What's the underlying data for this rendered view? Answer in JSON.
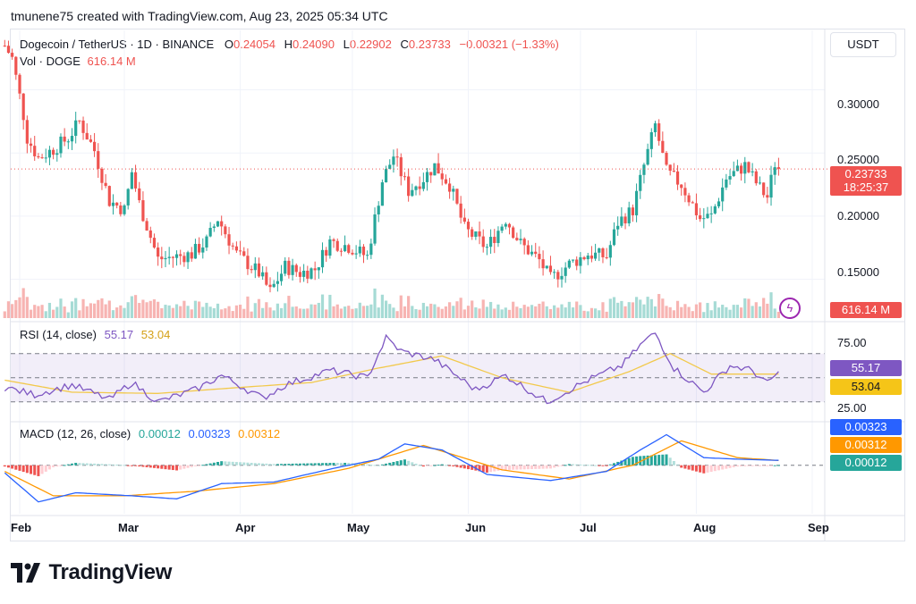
{
  "attribution": "tmunene75 created with TradingView.com, Aug 23, 2025 05:34 UTC",
  "colors": {
    "up": "#26a69a",
    "down": "#ef5350",
    "rsi": "#7e57c2",
    "rsi_ma": "#f2c94c",
    "macd": "#2962ff",
    "signal": "#ff9800",
    "accent": "#131722"
  },
  "header": {
    "symbol": "Dogecoin / TetherUS · 1D · BINANCE",
    "o_label": "O",
    "o": "0.24054",
    "h_label": "H",
    "h": "0.24090",
    "l_label": "L",
    "l": "0.22902",
    "c_label": "C",
    "c": "0.23733",
    "change": "−0.00321 (−1.33%)",
    "vol_label": "Vol · DOGE",
    "vol": "616.14 M"
  },
  "currency": "USDT",
  "price_tag": {
    "price": "0.23733",
    "countdown": "18:25:37"
  },
  "volume_tag": "616.14 M",
  "rsi_legend": {
    "title": "RSI (14, close)",
    "value": "55.17",
    "ma": "53.04"
  },
  "macd_legend": {
    "title": "MACD (12, 26, close)",
    "hist": "0.00012",
    "macd": "0.00323",
    "signal": "0.00312"
  },
  "rsi_tags": {
    "value": "55.17",
    "ma": "53.04"
  },
  "macd_tags": {
    "macd": "0.00323",
    "signal": "0.00312",
    "hist": "0.00012"
  },
  "logo_text": "TradingView",
  "chart_data": [
    {
      "type": "candlestick",
      "title": "Dogecoin / TetherUS · 1D · BINANCE",
      "ylabel": "USDT",
      "ylim": [
        0.12,
        0.34
      ],
      "y_ticks": [
        "0.30000",
        "0.25000",
        "0.20000",
        "0.15000"
      ],
      "x_ticks": [
        "Feb",
        "Mar",
        "Apr",
        "May",
        "Jun",
        "Jul",
        "Aug",
        "Sep"
      ],
      "last_price_line": 0.23733,
      "close_path": [
        {
          "date": "2025-01-28",
          "close": 0.335
        },
        {
          "date": "2025-01-30",
          "close": 0.325
        },
        {
          "date": "2025-02-02",
          "close": 0.28
        },
        {
          "date": "2025-02-03",
          "close": 0.262
        },
        {
          "date": "2025-02-06",
          "close": 0.246
        },
        {
          "date": "2025-02-10",
          "close": 0.253
        },
        {
          "date": "2025-02-14",
          "close": 0.262
        },
        {
          "date": "2025-02-17",
          "close": 0.275
        },
        {
          "date": "2025-02-21",
          "close": 0.252
        },
        {
          "date": "2025-02-25",
          "close": 0.212
        },
        {
          "date": "2025-03-01",
          "close": 0.205
        },
        {
          "date": "2025-03-03",
          "close": 0.235
        },
        {
          "date": "2025-03-05",
          "close": 0.21
        },
        {
          "date": "2025-03-10",
          "close": 0.166
        },
        {
          "date": "2025-03-15",
          "close": 0.168
        },
        {
          "date": "2025-03-19",
          "close": 0.17
        },
        {
          "date": "2025-03-23",
          "close": 0.18
        },
        {
          "date": "2025-03-26",
          "close": 0.198
        },
        {
          "date": "2025-03-31",
          "close": 0.17
        },
        {
          "date": "2025-04-06",
          "close": 0.155
        },
        {
          "date": "2025-04-09",
          "close": 0.14
        },
        {
          "date": "2025-04-13",
          "close": 0.16
        },
        {
          "date": "2025-04-17",
          "close": 0.155
        },
        {
          "date": "2025-04-21",
          "close": 0.158
        },
        {
          "date": "2025-04-25",
          "close": 0.18
        },
        {
          "date": "2025-04-30",
          "close": 0.176
        },
        {
          "date": "2025-05-05",
          "close": 0.168
        },
        {
          "date": "2025-05-09",
          "close": 0.228
        },
        {
          "date": "2025-05-12",
          "close": 0.248
        },
        {
          "date": "2025-05-16",
          "close": 0.22
        },
        {
          "date": "2025-05-20",
          "close": 0.23
        },
        {
          "date": "2025-05-23",
          "close": 0.24
        },
        {
          "date": "2025-05-27",
          "close": 0.225
        },
        {
          "date": "2025-05-31",
          "close": 0.19
        },
        {
          "date": "2025-06-06",
          "close": 0.175
        },
        {
          "date": "2025-06-11",
          "close": 0.198
        },
        {
          "date": "2025-06-15",
          "close": 0.178
        },
        {
          "date": "2025-06-20",
          "close": 0.165
        },
        {
          "date": "2025-06-23",
          "close": 0.15
        },
        {
          "date": "2025-06-28",
          "close": 0.162
        },
        {
          "date": "2025-07-03",
          "close": 0.17
        },
        {
          "date": "2025-07-08",
          "close": 0.168
        },
        {
          "date": "2025-07-11",
          "close": 0.195
        },
        {
          "date": "2025-07-15",
          "close": 0.205
        },
        {
          "date": "2025-07-18",
          "close": 0.24
        },
        {
          "date": "2025-07-21",
          "close": 0.272
        },
        {
          "date": "2025-07-24",
          "close": 0.235
        },
        {
          "date": "2025-07-28",
          "close": 0.225
        },
        {
          "date": "2025-08-02",
          "close": 0.198
        },
        {
          "date": "2025-08-05",
          "close": 0.2
        },
        {
          "date": "2025-08-09",
          "close": 0.23
        },
        {
          "date": "2025-08-14",
          "close": 0.24
        },
        {
          "date": "2025-08-18",
          "close": 0.222
        },
        {
          "date": "2025-08-20",
          "close": 0.215
        },
        {
          "date": "2025-08-22",
          "close": 0.242
        },
        {
          "date": "2025-08-23",
          "close": 0.23733
        }
      ]
    },
    {
      "type": "line",
      "title": "RSI (14, close)",
      "ylim": [
        18,
        92
      ],
      "y_ticks": [
        "75.00",
        "25.00"
      ],
      "bands": [
        70,
        50,
        30
      ],
      "rsi": [
        {
          "date": "2025-01-28",
          "value": 42
        },
        {
          "date": "2025-02-05",
          "value": 36
        },
        {
          "date": "2025-02-15",
          "value": 44
        },
        {
          "date": "2025-02-25",
          "value": 32
        },
        {
          "date": "2025-03-03",
          "value": 46
        },
        {
          "date": "2025-03-10",
          "value": 30
        },
        {
          "date": "2025-03-20",
          "value": 40
        },
        {
          "date": "2025-03-27",
          "value": 52
        },
        {
          "date": "2025-04-07",
          "value": 33
        },
        {
          "date": "2025-04-13",
          "value": 44
        },
        {
          "date": "2025-04-25",
          "value": 56
        },
        {
          "date": "2025-05-05",
          "value": 50
        },
        {
          "date": "2025-05-10",
          "value": 83
        },
        {
          "date": "2025-05-14",
          "value": 72
        },
        {
          "date": "2025-05-23",
          "value": 65
        },
        {
          "date": "2025-06-03",
          "value": 40
        },
        {
          "date": "2025-06-11",
          "value": 52
        },
        {
          "date": "2025-06-22",
          "value": 30
        },
        {
          "date": "2025-07-03",
          "value": 48
        },
        {
          "date": "2025-07-12",
          "value": 60
        },
        {
          "date": "2025-07-18",
          "value": 80
        },
        {
          "date": "2025-07-21",
          "value": 87
        },
        {
          "date": "2025-07-26",
          "value": 58
        },
        {
          "date": "2025-08-03",
          "value": 38
        },
        {
          "date": "2025-08-10",
          "value": 60
        },
        {
          "date": "2025-08-16",
          "value": 56
        },
        {
          "date": "2025-08-20",
          "value": 45
        },
        {
          "date": "2025-08-23",
          "value": 55.17
        }
      ],
      "rsi_ma": [
        {
          "date": "2025-01-28",
          "value": 48
        },
        {
          "date": "2025-02-15",
          "value": 38
        },
        {
          "date": "2025-03-10",
          "value": 37
        },
        {
          "date": "2025-04-01",
          "value": 42
        },
        {
          "date": "2025-04-20",
          "value": 46
        },
        {
          "date": "2025-05-08",
          "value": 58
        },
        {
          "date": "2025-05-25",
          "value": 68
        },
        {
          "date": "2025-06-10",
          "value": 50
        },
        {
          "date": "2025-06-28",
          "value": 38
        },
        {
          "date": "2025-07-14",
          "value": 55
        },
        {
          "date": "2025-07-25",
          "value": 70
        },
        {
          "date": "2025-08-05",
          "value": 53
        },
        {
          "date": "2025-08-23",
          "value": 53.04
        }
      ]
    },
    {
      "type": "line",
      "title": "MACD (12, 26, close)",
      "ylim": [
        -0.03,
        0.025
      ],
      "macd": [
        {
          "date": "2025-01-28",
          "value": -0.005
        },
        {
          "date": "2025-02-06",
          "value": -0.024
        },
        {
          "date": "2025-02-16",
          "value": -0.018
        },
        {
          "date": "2025-03-03",
          "value": -0.02
        },
        {
          "date": "2025-03-15",
          "value": -0.022
        },
        {
          "date": "2025-03-27",
          "value": -0.012
        },
        {
          "date": "2025-04-10",
          "value": -0.011
        },
        {
          "date": "2025-04-26",
          "value": -0.002
        },
        {
          "date": "2025-05-08",
          "value": 0.004
        },
        {
          "date": "2025-05-15",
          "value": 0.014
        },
        {
          "date": "2025-05-25",
          "value": 0.01
        },
        {
          "date": "2025-06-06",
          "value": -0.006
        },
        {
          "date": "2025-06-23",
          "value": -0.01
        },
        {
          "date": "2025-07-08",
          "value": -0.004
        },
        {
          "date": "2025-07-17",
          "value": 0.01
        },
        {
          "date": "2025-07-24",
          "value": 0.02
        },
        {
          "date": "2025-08-03",
          "value": 0.005
        },
        {
          "date": "2025-08-12",
          "value": 0.004
        },
        {
          "date": "2025-08-23",
          "value": 0.00323
        }
      ],
      "signal": [
        {
          "date": "2025-01-28",
          "value": -0.004
        },
        {
          "date": "2025-02-10",
          "value": -0.02
        },
        {
          "date": "2025-03-01",
          "value": -0.02
        },
        {
          "date": "2025-03-20",
          "value": -0.017
        },
        {
          "date": "2025-04-10",
          "value": -0.012
        },
        {
          "date": "2025-04-30",
          "value": -0.002
        },
        {
          "date": "2025-05-20",
          "value": 0.013
        },
        {
          "date": "2025-06-10",
          "value": -0.003
        },
        {
          "date": "2025-06-28",
          "value": -0.009
        },
        {
          "date": "2025-07-15",
          "value": 0.0
        },
        {
          "date": "2025-07-28",
          "value": 0.016
        },
        {
          "date": "2025-08-12",
          "value": 0.005
        },
        {
          "date": "2025-08-23",
          "value": 0.00312
        }
      ],
      "histogram_last": 0.00012
    }
  ]
}
